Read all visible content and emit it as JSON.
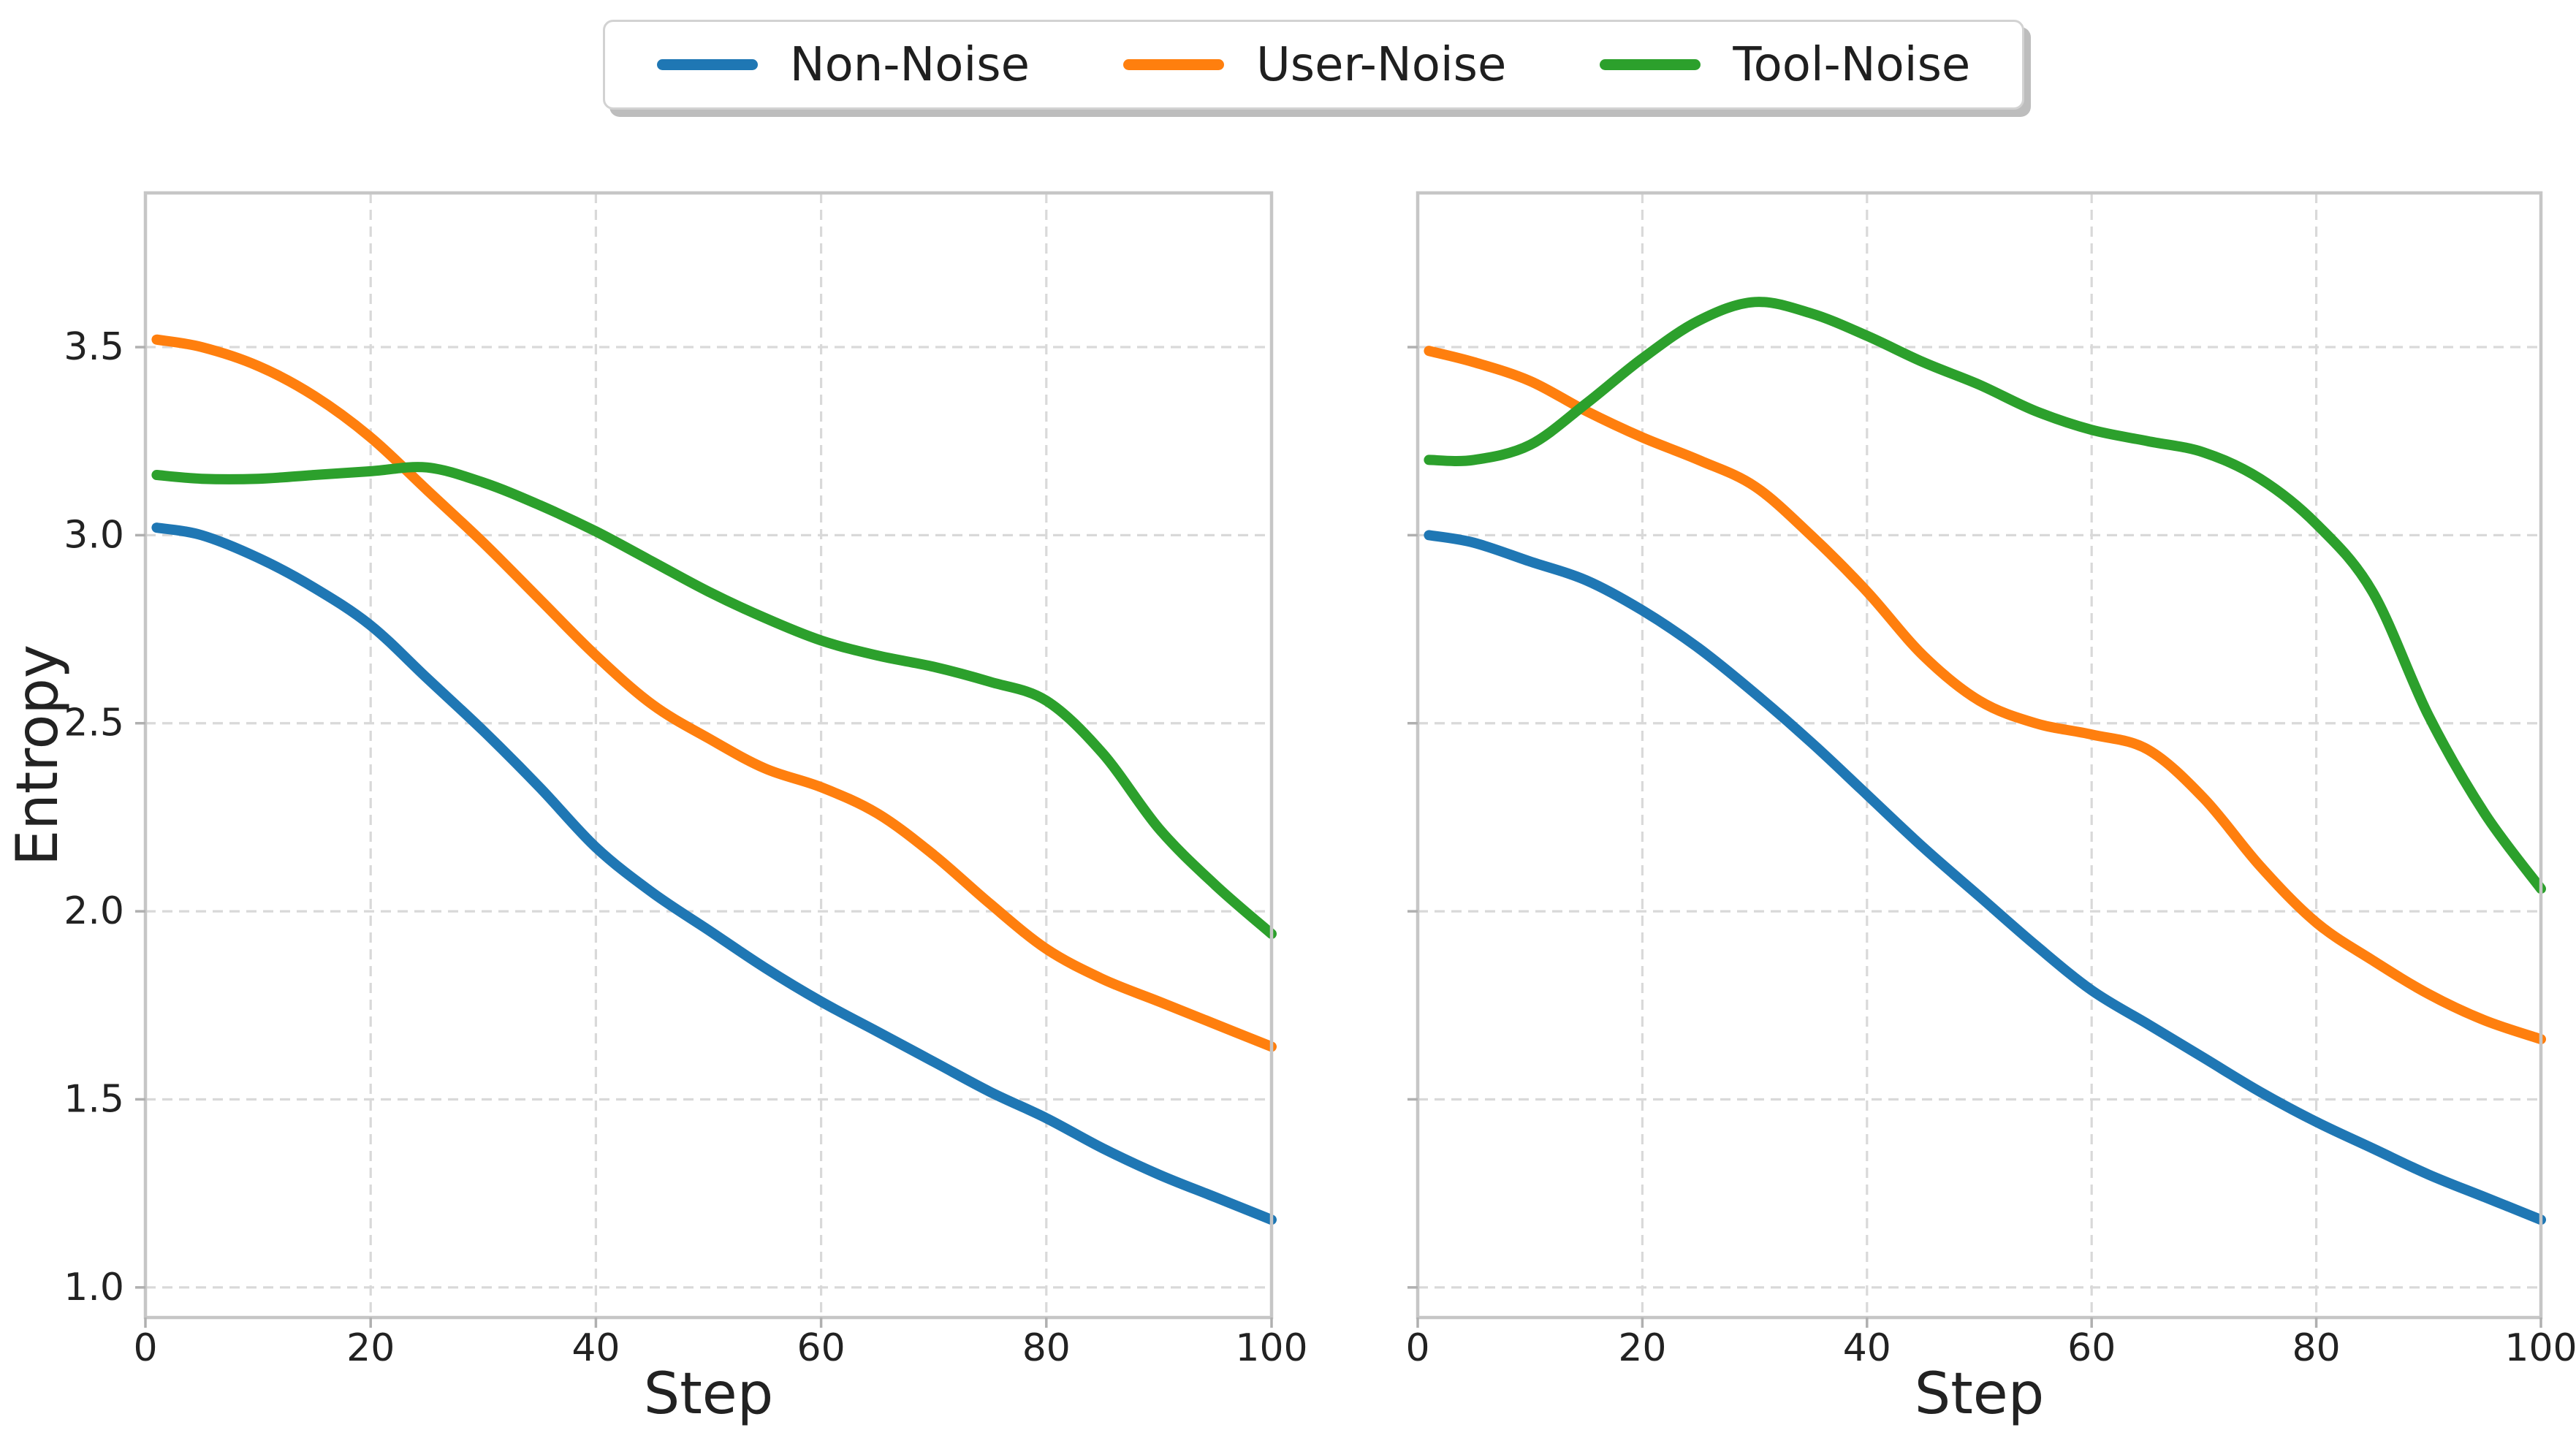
{
  "legend": {
    "items": [
      {
        "label": "Non-Noise",
        "color": "#1f77b4"
      },
      {
        "label": "User-Noise",
        "color": "#ff7f0e"
      },
      {
        "label": "Tool-Noise",
        "color": "#2ca02c"
      }
    ]
  },
  "text_color": "#222222",
  "grid_color": "#d9d9d9",
  "spine_color": "#c6c6c6",
  "tick_color": "#b0b0b0",
  "chart_data": [
    {
      "type": "line",
      "panel": "left",
      "title": "",
      "xlabel": "Step",
      "ylabel": "Entropy",
      "xlim": [
        0,
        100
      ],
      "ylim": [
        0.92,
        3.91
      ],
      "x_ticks": [
        0,
        20,
        40,
        60,
        80,
        100
      ],
      "y_ticks": [
        1.0,
        1.5,
        2.0,
        2.5,
        3.0,
        3.5
      ],
      "y_tick_labels_visible": true,
      "grid": true,
      "legend_position": "top-center-shared",
      "series": [
        {
          "name": "Non-Noise",
          "color": "#1f77b4",
          "points": [
            [
              1,
              3.02
            ],
            [
              5,
              3.0
            ],
            [
              10,
              2.94
            ],
            [
              15,
              2.86
            ],
            [
              20,
              2.76
            ],
            [
              25,
              2.62
            ],
            [
              30,
              2.48
            ],
            [
              35,
              2.33
            ],
            [
              40,
              2.17
            ],
            [
              45,
              2.05
            ],
            [
              50,
              1.95
            ],
            [
              55,
              1.85
            ],
            [
              60,
              1.76
            ],
            [
              65,
              1.68
            ],
            [
              70,
              1.6
            ],
            [
              75,
              1.52
            ],
            [
              80,
              1.45
            ],
            [
              85,
              1.37
            ],
            [
              90,
              1.3
            ],
            [
              95,
              1.24
            ],
            [
              100,
              1.18
            ]
          ]
        },
        {
          "name": "User-Noise",
          "color": "#ff7f0e",
          "points": [
            [
              1,
              3.52
            ],
            [
              5,
              3.5
            ],
            [
              10,
              3.45
            ],
            [
              15,
              3.37
            ],
            [
              20,
              3.26
            ],
            [
              25,
              3.12
            ],
            [
              30,
              2.98
            ],
            [
              35,
              2.83
            ],
            [
              40,
              2.68
            ],
            [
              45,
              2.55
            ],
            [
              50,
              2.46
            ],
            [
              55,
              2.38
            ],
            [
              60,
              2.33
            ],
            [
              65,
              2.26
            ],
            [
              70,
              2.15
            ],
            [
              75,
              2.02
            ],
            [
              80,
              1.9
            ],
            [
              85,
              1.82
            ],
            [
              90,
              1.76
            ],
            [
              95,
              1.7
            ],
            [
              100,
              1.64
            ]
          ]
        },
        {
          "name": "Tool-Noise",
          "color": "#2ca02c",
          "points": [
            [
              1,
              3.16
            ],
            [
              5,
              3.15
            ],
            [
              10,
              3.15
            ],
            [
              15,
              3.16
            ],
            [
              20,
              3.17
            ],
            [
              25,
              3.18
            ],
            [
              30,
              3.14
            ],
            [
              35,
              3.08
            ],
            [
              40,
              3.01
            ],
            [
              45,
              2.93
            ],
            [
              50,
              2.85
            ],
            [
              55,
              2.78
            ],
            [
              60,
              2.72
            ],
            [
              65,
              2.68
            ],
            [
              70,
              2.65
            ],
            [
              75,
              2.61
            ],
            [
              80,
              2.56
            ],
            [
              85,
              2.42
            ],
            [
              90,
              2.22
            ],
            [
              95,
              2.07
            ],
            [
              100,
              1.94
            ]
          ]
        }
      ]
    },
    {
      "type": "line",
      "panel": "right",
      "title": "",
      "xlabel": "Step",
      "ylabel": "",
      "xlim": [
        0,
        100
      ],
      "ylim": [
        0.92,
        3.91
      ],
      "x_ticks": [
        0,
        20,
        40,
        60,
        80,
        100
      ],
      "y_ticks": [
        1.0,
        1.5,
        2.0,
        2.5,
        3.0,
        3.5
      ],
      "y_tick_labels_visible": false,
      "grid": true,
      "legend_position": "top-center-shared",
      "series": [
        {
          "name": "Non-Noise",
          "color": "#1f77b4",
          "points": [
            [
              1,
              3.0
            ],
            [
              5,
              2.98
            ],
            [
              10,
              2.93
            ],
            [
              15,
              2.88
            ],
            [
              20,
              2.8
            ],
            [
              25,
              2.7
            ],
            [
              30,
              2.58
            ],
            [
              35,
              2.45
            ],
            [
              40,
              2.31
            ],
            [
              45,
              2.17
            ],
            [
              50,
              2.04
            ],
            [
              55,
              1.91
            ],
            [
              60,
              1.79
            ],
            [
              65,
              1.7
            ],
            [
              70,
              1.61
            ],
            [
              75,
              1.52
            ],
            [
              80,
              1.44
            ],
            [
              85,
              1.37
            ],
            [
              90,
              1.3
            ],
            [
              95,
              1.24
            ],
            [
              100,
              1.18
            ]
          ]
        },
        {
          "name": "User-Noise",
          "color": "#ff7f0e",
          "points": [
            [
              1,
              3.49
            ],
            [
              5,
              3.46
            ],
            [
              10,
              3.41
            ],
            [
              15,
              3.33
            ],
            [
              20,
              3.26
            ],
            [
              25,
              3.2
            ],
            [
              30,
              3.13
            ],
            [
              35,
              3.0
            ],
            [
              40,
              2.85
            ],
            [
              45,
              2.68
            ],
            [
              50,
              2.56
            ],
            [
              55,
              2.5
            ],
            [
              60,
              2.47
            ],
            [
              65,
              2.43
            ],
            [
              70,
              2.3
            ],
            [
              75,
              2.12
            ],
            [
              80,
              1.97
            ],
            [
              85,
              1.87
            ],
            [
              90,
              1.78
            ],
            [
              95,
              1.71
            ],
            [
              100,
              1.66
            ]
          ]
        },
        {
          "name": "Tool-Noise",
          "color": "#2ca02c",
          "points": [
            [
              1,
              3.2
            ],
            [
              5,
              3.2
            ],
            [
              10,
              3.24
            ],
            [
              15,
              3.35
            ],
            [
              20,
              3.47
            ],
            [
              25,
              3.57
            ],
            [
              30,
              3.62
            ],
            [
              35,
              3.59
            ],
            [
              40,
              3.53
            ],
            [
              45,
              3.46
            ],
            [
              50,
              3.4
            ],
            [
              55,
              3.33
            ],
            [
              60,
              3.28
            ],
            [
              65,
              3.25
            ],
            [
              70,
              3.22
            ],
            [
              75,
              3.15
            ],
            [
              80,
              3.03
            ],
            [
              85,
              2.85
            ],
            [
              90,
              2.52
            ],
            [
              95,
              2.26
            ],
            [
              100,
              2.06
            ]
          ]
        }
      ]
    }
  ]
}
